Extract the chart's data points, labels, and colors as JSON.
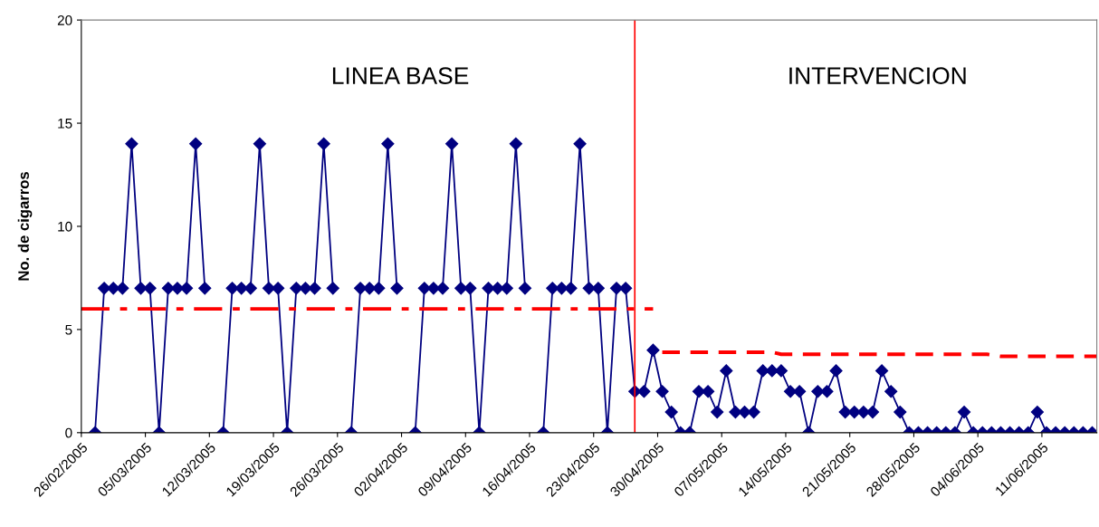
{
  "chart_data": {
    "type": "line",
    "ylabel": "No. de cigarros",
    "annotations": [
      "LINEA BASE",
      "INTERVENCION"
    ],
    "x": [
      "2005-02-27",
      "2005-02-28",
      "2005-03-01",
      "2005-03-02",
      "2005-03-03",
      "2005-03-04",
      "2005-03-05",
      "2005-03-06",
      "2005-03-07",
      "2005-03-08",
      "2005-03-09",
      "2005-03-10",
      "2005-03-11",
      "2005-03-12",
      "2005-03-13",
      "2005-03-14",
      "2005-03-15",
      "2005-03-16",
      "2005-03-17",
      "2005-03-18",
      "2005-03-19",
      "2005-03-20",
      "2005-03-21",
      "2005-03-22",
      "2005-03-23",
      "2005-03-24",
      "2005-03-25",
      "2005-03-26",
      "2005-03-27",
      "2005-03-28",
      "2005-03-29",
      "2005-03-30",
      "2005-03-31",
      "2005-04-01",
      "2005-04-02",
      "2005-04-03",
      "2005-04-04",
      "2005-04-05",
      "2005-04-06",
      "2005-04-07",
      "2005-04-08",
      "2005-04-09",
      "2005-04-10",
      "2005-04-11",
      "2005-04-12",
      "2005-04-13",
      "2005-04-14",
      "2005-04-15",
      "2005-04-16",
      "2005-04-17",
      "2005-04-18",
      "2005-04-19",
      "2005-04-20",
      "2005-04-21",
      "2005-04-22",
      "2005-04-23",
      "2005-04-24",
      "2005-04-25",
      "2005-04-26",
      "2005-04-27",
      "2005-04-28",
      "2005-04-29",
      "2005-04-30",
      "2005-05-01",
      "2005-05-02",
      "2005-05-03",
      "2005-05-04",
      "2005-05-05",
      "2005-05-06",
      "2005-05-07",
      "2005-05-08",
      "2005-05-09",
      "2005-05-10",
      "2005-05-11",
      "2005-05-12",
      "2005-05-13",
      "2005-05-14",
      "2005-05-15",
      "2005-05-16",
      "2005-05-17",
      "2005-05-18",
      "2005-05-19",
      "2005-05-20",
      "2005-05-21",
      "2005-05-22",
      "2005-05-23",
      "2005-05-24",
      "2005-05-25",
      "2005-05-26",
      "2005-05-27",
      "2005-05-28",
      "2005-05-29",
      "2005-05-30",
      "2005-05-31",
      "2005-06-01",
      "2005-06-02",
      "2005-06-03",
      "2005-06-04",
      "2005-06-05",
      "2005-06-06",
      "2005-06-07",
      "2005-06-08",
      "2005-06-09",
      "2005-06-10",
      "2005-06-11",
      "2005-06-12",
      "2005-06-13",
      "2005-06-14",
      "2005-06-15",
      "2005-06-16"
    ],
    "series": [
      {
        "color": "#000080",
        "marker": "diamond",
        "line_style": "solid",
        "values": [
          0,
          7,
          7,
          7,
          14,
          7,
          7,
          0,
          7,
          7,
          7,
          14,
          7,
          null,
          0,
          7,
          7,
          7,
          14,
          7,
          7,
          0,
          7,
          7,
          7,
          14,
          7,
          null,
          0,
          7,
          7,
          7,
          14,
          7,
          null,
          0,
          7,
          7,
          7,
          14,
          7,
          7,
          0,
          7,
          7,
          7,
          14,
          7,
          null,
          0,
          7,
          7,
          7,
          14,
          7,
          7,
          0,
          7,
          7,
          2,
          2,
          4,
          2,
          1,
          0,
          0,
          2,
          2,
          1,
          3,
          1,
          1,
          1,
          3,
          3,
          3,
          2,
          2,
          0,
          2,
          2,
          3,
          1,
          1,
          1,
          1,
          3,
          2,
          1,
          0,
          0,
          0,
          0,
          0,
          0,
          1,
          0,
          0,
          0,
          0,
          0,
          0,
          0,
          1,
          0,
          0,
          0,
          0,
          0,
          0
        ]
      },
      {
        "type": "line",
        "color": "#ff0000",
        "marker": "none",
        "line_style": "dashdot",
        "x": [
          "2005-02-25T12:00",
          "2005-04-29"
        ],
        "values": [
          6,
          6
        ]
      },
      {
        "type": "line",
        "color": "#ff0000",
        "marker": "none",
        "line_style": "dashed",
        "x": [
          "2005-04-30",
          "2005-05-12",
          "2005-05-13",
          "2005-06-04T12:00",
          "2005-06-06",
          "2005-06-16T12:00"
        ],
        "values": [
          3.9,
          3.9,
          3.8,
          3.8,
          3.7,
          3.7
        ]
      }
    ],
    "ref_lines": [
      {
        "axis": "x",
        "value": "2005-04-27",
        "color": "#ff0000",
        "line_style": "solid"
      }
    ],
    "xlim": [
      "2005-02-25T12:00",
      "2005-06-16T12:00"
    ],
    "xticks": [
      {
        "value": "2005-02-25T12:00",
        "label": "26/02/2005"
      },
      {
        "value": "2005-03-04T12:00",
        "label": "05/03/2005"
      },
      {
        "value": "2005-03-11T12:00",
        "label": "12/03/2005"
      },
      {
        "value": "2005-03-18T12:00",
        "label": "19/03/2005"
      },
      {
        "value": "2005-03-25T12:00",
        "label": "26/03/2005"
      },
      {
        "value": "2005-04-01T12:00",
        "label": "02/04/2005"
      },
      {
        "value": "2005-04-08T12:00",
        "label": "09/04/2005"
      },
      {
        "value": "2005-04-15T12:00",
        "label": "16/04/2005"
      },
      {
        "value": "2005-04-22T12:00",
        "label": "23/04/2005"
      },
      {
        "value": "2005-04-29T12:00",
        "label": "30/04/2005"
      },
      {
        "value": "2005-05-06T12:00",
        "label": "07/05/2005"
      },
      {
        "value": "2005-05-13T12:00",
        "label": "14/05/2005"
      },
      {
        "value": "2005-05-20T12:00",
        "label": "21/05/2005"
      },
      {
        "value": "2005-05-27T12:00",
        "label": "28/05/2005"
      },
      {
        "value": "2005-06-03T12:00",
        "label": "04/06/2005"
      },
      {
        "value": "2005-06-10T12:00",
        "label": "11/06/2005"
      }
    ],
    "ylim": [
      0,
      20
    ],
    "yticks": [
      0,
      5,
      10,
      15,
      20
    ],
    "grid": false,
    "legend": false
  }
}
